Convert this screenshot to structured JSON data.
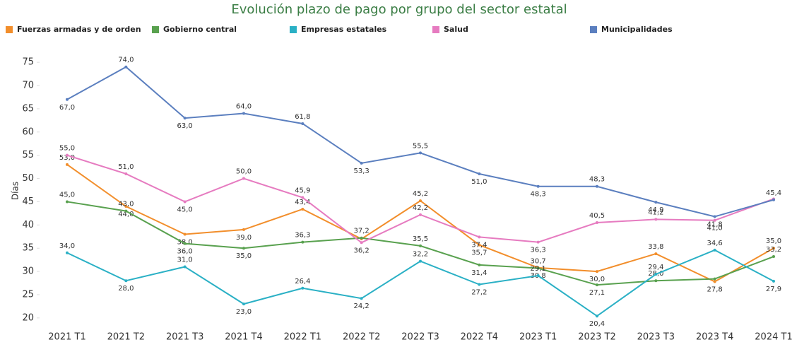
{
  "chart_data": {
    "type": "line",
    "title": "Evolución plazo de pago por grupo del sector estatal",
    "y_label": "Días",
    "categories": [
      "2021 T1",
      "2021 T2",
      "2021 T3",
      "2021 T4",
      "2022 T1",
      "2022 T2",
      "2022 T3",
      "2022 T4",
      "2023 T1",
      "2023 T2",
      "2023 T3",
      "2023 T4",
      "2024 T1"
    ],
    "ylim": [
      18,
      77
    ],
    "yticks": [
      20,
      25,
      30,
      35,
      40,
      45,
      50,
      55,
      60,
      65,
      70,
      75
    ],
    "series": [
      {
        "name": "Fuerzas armadas y de orden",
        "color": "#f28e2b",
        "values": [
          53.0,
          44.0,
          38.0,
          39.0,
          43.4,
          37.0,
          45.2,
          35.7,
          30.8,
          30.0,
          33.8,
          27.8,
          35.0
        ],
        "value_labels": [
          "53,0",
          "44,0",
          "38,0",
          "39,0",
          "43,4",
          null,
          "45,2",
          "35,7",
          "30,8",
          "30,0",
          "33,8",
          "27,8",
          "35,0"
        ]
      },
      {
        "name": "Gobierno central",
        "color": "#59a14f",
        "values": [
          45.0,
          43.0,
          36.0,
          35.0,
          36.3,
          37.2,
          35.5,
          31.4,
          30.7,
          27.1,
          28.0,
          28.4,
          33.2
        ],
        "value_labels": [
          "45,0",
          "43,0",
          "36,0",
          "35,0",
          "36,3",
          "37,2",
          "35,5",
          "31,4",
          "30,7",
          "27,1",
          "28,0",
          null,
          "33,2"
        ]
      },
      {
        "name": "Empresas estatales",
        "color": "#2ab0c5",
        "values": [
          34.0,
          28.0,
          31.0,
          23.0,
          26.4,
          24.2,
          32.2,
          27.2,
          29.1,
          20.4,
          29.4,
          34.6,
          27.9
        ],
        "value_labels": [
          "34,0",
          "28,0",
          "31,0",
          "23,0",
          "26,4",
          "24,2",
          "32,2",
          "27,2",
          "29,1",
          "20,4",
          "29,4",
          "34,6",
          "27,9"
        ]
      },
      {
        "name": "Salud",
        "color": "#e67bc0",
        "values": [
          55.0,
          51.0,
          45.0,
          50.0,
          45.9,
          36.2,
          42.2,
          37.4,
          36.3,
          40.5,
          41.2,
          41.0,
          45.6
        ],
        "value_labels": [
          "55,0",
          "51,0",
          "45,0",
          "50,0",
          "45,9",
          "36,2",
          "42,2",
          "37,4",
          "36,3",
          "40,5",
          "41,2",
          "41,0",
          null
        ]
      },
      {
        "name": "Municipalidades",
        "color": "#5b7fbf",
        "values": [
          67.0,
          74.0,
          63.0,
          64.0,
          61.8,
          53.3,
          55.5,
          51.0,
          48.3,
          48.3,
          44.9,
          41.8,
          45.4
        ],
        "value_labels": [
          "67,0",
          "74,0",
          "63,0",
          "64,0",
          "61,8",
          "53,3",
          "55,5",
          "51,0",
          "48,3",
          "48,3",
          "44,9",
          "41,8",
          "45,4"
        ]
      }
    ]
  }
}
